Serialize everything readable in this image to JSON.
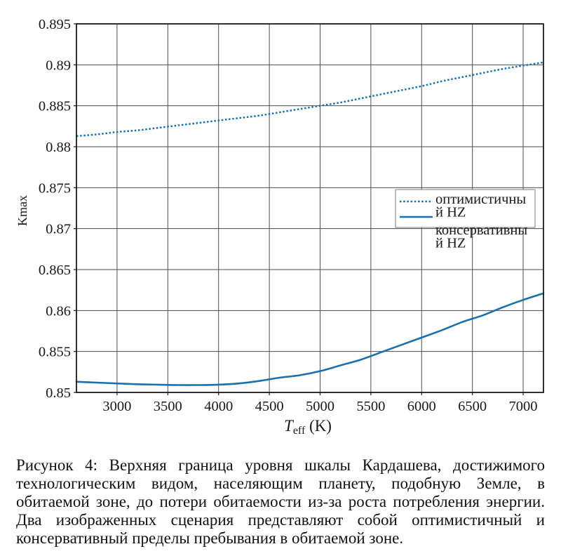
{
  "figure": {
    "kind": "scientific-figure-with-caption"
  },
  "chart_data": {
    "type": "line",
    "title": "",
    "xlabel": "T_eff (K)",
    "xlabel_parts": {
      "main": "T",
      "sub": "eff",
      "unit": " (K)"
    },
    "ylabel": "Kmax",
    "x_range": [
      2600,
      7200
    ],
    "y_range": [
      0.85,
      0.895
    ],
    "x_ticks": [
      {
        "value": 3000,
        "label": "3000"
      },
      {
        "value": 3500,
        "label": "3500"
      },
      {
        "value": 4000,
        "label": "4000"
      },
      {
        "value": 4500,
        "label": "4500"
      },
      {
        "value": 5000,
        "label": "5000"
      },
      {
        "value": 5500,
        "label": "5500"
      },
      {
        "value": 6000,
        "label": "6000"
      },
      {
        "value": 6500,
        "label": "6500"
      },
      {
        "value": 7000,
        "label": "7000"
      }
    ],
    "y_ticks": [
      {
        "value": 0.85,
        "label": "0.85"
      },
      {
        "value": 0.855,
        "label": "0.855"
      },
      {
        "value": 0.86,
        "label": "0.86"
      },
      {
        "value": 0.865,
        "label": "0.865"
      },
      {
        "value": 0.87,
        "label": "0.87"
      },
      {
        "value": 0.875,
        "label": "0.875"
      },
      {
        "value": 0.88,
        "label": "0.88"
      },
      {
        "value": 0.885,
        "label": "0.885"
      },
      {
        "value": 0.89,
        "label": "0.89"
      },
      {
        "value": 0.895,
        "label": "0.895"
      }
    ],
    "grid": true,
    "legend_position": "upper right inside",
    "series": [
      {
        "name": "оптимистичный HZ",
        "style": "dotted",
        "color": "#1a70ac",
        "x": [
          2600,
          2800,
          3000,
          3200,
          3400,
          3600,
          3800,
          4000,
          4200,
          4400,
          4600,
          4800,
          5000,
          5200,
          5400,
          5600,
          5800,
          6000,
          6200,
          6400,
          6600,
          6800,
          7000,
          7200
        ],
        "y": [
          0.8813,
          0.8815,
          0.8818,
          0.882,
          0.8823,
          0.8826,
          0.8829,
          0.8832,
          0.8835,
          0.8838,
          0.8842,
          0.8846,
          0.885,
          0.8854,
          0.8859,
          0.8864,
          0.8869,
          0.8874,
          0.888,
          0.8885,
          0.889,
          0.8895,
          0.8899,
          0.8903
        ]
      },
      {
        "name": "консервативный HZ",
        "style": "solid",
        "color": "#1a70ac",
        "x": [
          2600,
          2800,
          3000,
          3200,
          3400,
          3600,
          3800,
          4000,
          4200,
          4400,
          4600,
          4800,
          5000,
          5200,
          5400,
          5600,
          5800,
          6000,
          6200,
          6400,
          6600,
          6800,
          7000,
          7200
        ],
        "y": [
          0.8513,
          0.8512,
          0.8511,
          0.851,
          0.85095,
          0.8509,
          0.8509,
          0.85095,
          0.8511,
          0.8514,
          0.8518,
          0.8521,
          0.8526,
          0.8533,
          0.854,
          0.8549,
          0.8558,
          0.8567,
          0.8576,
          0.8586,
          0.8594,
          0.8604,
          0.8613,
          0.8621
        ]
      }
    ],
    "legend": {
      "entries": [
        {
          "label": "оптимистичный HZ",
          "style": "dotted",
          "lines": [
            "оптимистичны",
            "й HZ"
          ]
        },
        {
          "label": "консервативный HZ",
          "style": "solid",
          "lines": [
            "консервативны",
            "й HZ"
          ]
        }
      ]
    }
  },
  "caption": {
    "label": "Рисунок 4:",
    "full_text": "Рисунок 4: Верхняя граница уровня шкалы Кардашева, достижимого технологическим видом, населяющим планету, подобную Земле, в обитаемой зоне, до потери обитаемости из-за роста потребления энергии. Два изображенных сценария представляют собой оптимистичный и консервативный пределы пребывания в обитаемой зоне.",
    "lines": [
      "Рисунок 4: Верхняя граница уровня шкалы Кардашева, достижимого",
      "технологическим видом, населяющим планету, подобную Земле, в",
      "обитаемой зоне, до потери обитаемости из-за роста потребления энергии.",
      "Два изображенных сценария представляют собой оптимистичный и",
      "консервативный пределы пребывания в обитаемой зоне."
    ]
  },
  "colors": {
    "line_blue": "#1a70ac",
    "grid": "#4d4d4d",
    "spine": "#1a1a1a",
    "legend_border": "#7f7f7f",
    "background": "#ffffff"
  }
}
